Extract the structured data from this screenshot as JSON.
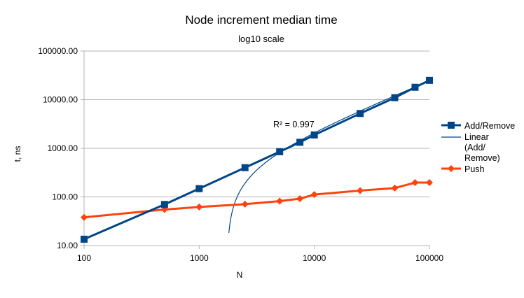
{
  "chart_data": {
    "type": "line",
    "title": "Node increment median time",
    "subtitle": "log10 scale",
    "xlabel": "N",
    "ylabel": "t, ns",
    "xscale": "log10",
    "yscale": "log10",
    "xlim": [
      100,
      100000
    ],
    "ylim": [
      10,
      100000
    ],
    "grid": "horizontal major",
    "legend_position": "right",
    "x_tick_labels": [
      "100",
      "1000",
      "10000",
      "100000"
    ],
    "x_tick_values": [
      100,
      1000,
      10000,
      100000
    ],
    "y_tick_labels": [
      "10.00",
      "100.00",
      "1000.00",
      "10000.00",
      "100000.00"
    ],
    "y_tick_values": [
      10,
      100,
      1000,
      10000,
      100000
    ],
    "series": [
      {
        "name": "Add/Remove",
        "color": "#004586",
        "marker": "square",
        "x": [
          100,
          500,
          1000,
          2500,
          5000,
          7500,
          10000,
          25000,
          50000,
          75000,
          100000
        ],
        "y": [
          13.5,
          70,
          148,
          400,
          850,
          1330,
          1880,
          5200,
          11000,
          18000,
          25000
        ]
      },
      {
        "name": "Linear (Add/ Remove)",
        "legend_lines": [
          "Linear",
          "(Add/",
          "Remove)"
        ],
        "color": "#004586",
        "kind": "linear-trendline",
        "of": "Add/Remove",
        "slope_ns_per_N": 0.25,
        "intercept_ns": -434,
        "r_squared_label": "R² = 0.997"
      },
      {
        "name": "Push",
        "color": "#ff420e",
        "marker": "diamond",
        "x": [
          100,
          500,
          1000,
          2500,
          5000,
          7500,
          10000,
          25000,
          50000,
          75000,
          100000
        ],
        "y": [
          38,
          55,
          62,
          71,
          82,
          92,
          112,
          135,
          152,
          197,
          197
        ]
      }
    ]
  }
}
